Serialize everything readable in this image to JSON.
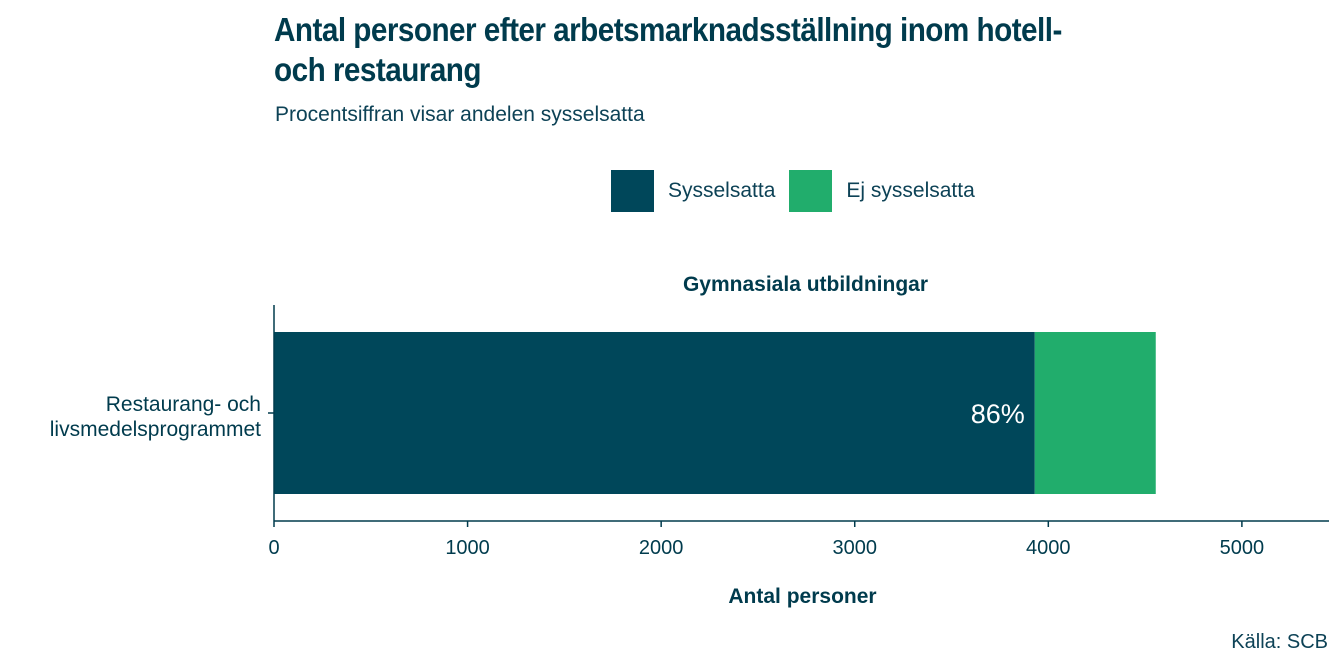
{
  "title": "Antal personer efter arbetsmarknadsställning inom hotell- och restaurang",
  "subtitle": "Procentsiffran visar andelen sysselsatta",
  "source": "Källa: SCB",
  "colors": {
    "sysselsatta": "#00475a",
    "ej_sysselsatta": "#21ad6c",
    "text": "#003b4d",
    "axis": "#003b4d"
  },
  "legend": [
    {
      "label": "Sysselsatta",
      "color": "#00475a"
    },
    {
      "label": "Ej sysselsatta",
      "color": "#21ad6c"
    }
  ],
  "chart_data": {
    "type": "bar",
    "orientation": "horizontal",
    "stacked": true,
    "panel_title": "Gymnasiala utbildningar",
    "categories": [
      "Restaurang- och livsmedelsprogrammet"
    ],
    "series": [
      {
        "name": "Sysselsatta",
        "values": [
          3930
        ]
      },
      {
        "name": "Ej sysselsatta",
        "values": [
          625
        ]
      }
    ],
    "data_labels": [
      "86%"
    ],
    "xlabel": "Antal personer",
    "ylabel": "",
    "xlim": [
      0,
      5450
    ],
    "xticks": [
      0,
      1000,
      2000,
      3000,
      4000,
      5000
    ],
    "grid": false,
    "legend_position": "top"
  }
}
